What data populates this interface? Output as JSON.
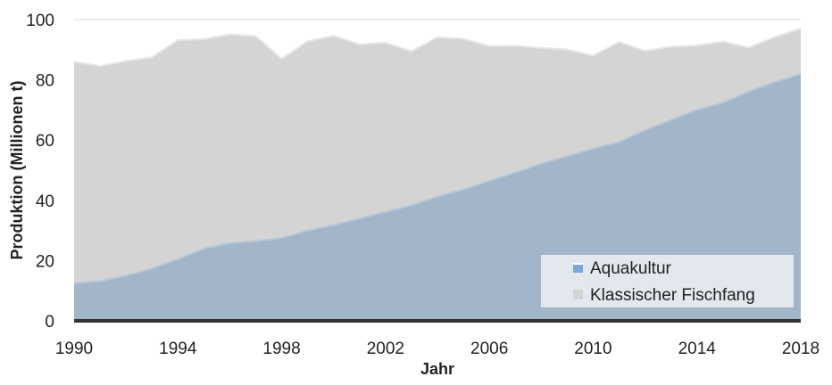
{
  "chart_data": {
    "type": "area",
    "stacked": false,
    "title": "",
    "xlabel": "Jahr",
    "ylabel": "Produktion (Millionen t)",
    "xlim": [
      1990,
      2018
    ],
    "ylim": [
      0,
      100
    ],
    "x_ticks": [
      "1990",
      "1994",
      "1998",
      "2002",
      "2006",
      "2010",
      "2014",
      "2018"
    ],
    "y_ticks": [
      "0",
      "20",
      "40",
      "60",
      "80",
      "100"
    ],
    "grid": "horizontal",
    "legend_position": "bottom-right",
    "x": [
      1990,
      1991,
      1992,
      1993,
      1994,
      1995,
      1996,
      1997,
      1998,
      1999,
      2000,
      2001,
      2002,
      2003,
      2004,
      2005,
      2006,
      2007,
      2008,
      2009,
      2010,
      2011,
      2012,
      2013,
      2014,
      2015,
      2016,
      2017,
      2018
    ],
    "series": [
      {
        "name": "Klassischer Fischfang",
        "color": "#d4d4d4",
        "line_color": "#e6e6e6",
        "values": [
          86,
          84.6,
          86.2,
          87.5,
          93.2,
          93.5,
          95.1,
          94.5,
          87,
          92.8,
          94.6,
          91.8,
          92.3,
          89.5,
          94.1,
          93.6,
          91.2,
          91.3,
          90.6,
          90.1,
          88,
          92.6,
          89.6,
          91,
          91.4,
          92.7,
          90.7,
          94.2,
          97.1
        ]
      },
      {
        "name": "Aquakultur",
        "color": "#a3b6c9",
        "line_color": "#b8c8d8",
        "legend_color": "#7da7d9",
        "values": [
          12.5,
          13.2,
          15,
          17.4,
          20.5,
          24,
          25.8,
          26.5,
          27.5,
          30,
          31.8,
          34,
          36.2,
          38.4,
          41.3,
          43.6,
          46.5,
          49.2,
          52.2,
          54.6,
          57.2,
          59.4,
          63.3,
          66.7,
          70.1,
          72.4,
          76.2,
          79.3,
          82
        ]
      }
    ]
  },
  "legend": {
    "items": [
      {
        "label": "Aquakultur",
        "color": "#7da7d9"
      },
      {
        "label": "Klassischer Fischfang",
        "color": "#d4d4d4"
      }
    ]
  }
}
